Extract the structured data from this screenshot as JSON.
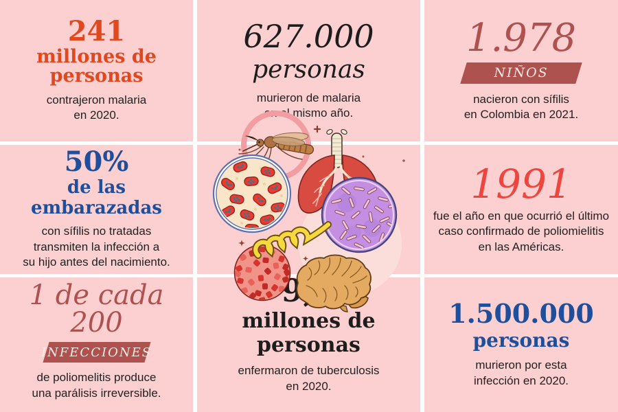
{
  "palette": {
    "bg": "#fcd0d1",
    "gutter": "#ffffff",
    "orange": "#e2481f",
    "blue": "#1e4f9d",
    "brick": "#ae5250",
    "red": "#ee453f",
    "ink": "#212121",
    "badgetext": "#fbe9e4"
  },
  "cells": {
    "malaria_cases": {
      "headline": "241",
      "subhead": "millones de\npersonas",
      "body": "contrajeron malaria\nen 2020."
    },
    "malaria_deaths": {
      "headline": "627.000",
      "subhead": "personas",
      "body": "murieron de malaria\nen el mismo año."
    },
    "syphilis_births": {
      "headline": "1.978",
      "badge": "NIÑOS",
      "body": "nacieron con sífilis\nen Colombia en 2021."
    },
    "syphilis_pregnant": {
      "headline": "50%",
      "subhead": "de las embarazadas",
      "body": "con sífilis no tratadas\ntransmiten la infección a\nsu hijo antes del nacimiento."
    },
    "polio_year": {
      "headline": "1991",
      "body": "fue el año en que ocurrió el último\ncaso confirmado de poliomielitis\nen las Américas."
    },
    "polio_paralysis": {
      "headline": "1 de cada 200",
      "badge": "INFECCIONES",
      "body": "de poliomelitis produce\nuna parálisis irreversible."
    },
    "tb_cases": {
      "headline": "9,9",
      "subhead": "millones de personas",
      "body": "enfermaron de tuberculosis\nen 2020."
    },
    "tb_deaths": {
      "headline": "1.500.000",
      "subhead": "personas",
      "body": "murieron por esta\ninfección en 2020."
    }
  },
  "illustrations": [
    "mosquito-icon",
    "trachea-icon",
    "lungs-icon",
    "malaria-blood-smear-icon",
    "tuberculosis-bacilli-dish-icon",
    "treponema-spiral-icon",
    "polio-virus-icon",
    "brain-icon"
  ]
}
